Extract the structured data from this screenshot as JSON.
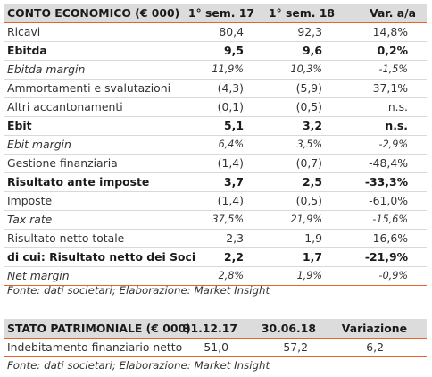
{
  "income": {
    "headers": {
      "label": "CONTO ECONOMICO (€ 000)",
      "col1": "1° sem. 17",
      "col2": "1° sem. 18",
      "col3": "Var. a/a"
    },
    "rows": [
      {
        "label": "Ricavi",
        "v1": "80,4",
        "v2": "92,3",
        "v3": "14,8%"
      },
      {
        "label": "Ebitda",
        "v1": "9,5",
        "v2": "9,6",
        "v3": "0,2%"
      },
      {
        "label": "Ebitda margin",
        "v1": "11,9%",
        "v2": "10,3%",
        "v3": "-1,5%"
      },
      {
        "label": "Ammortamenti e svalutazioni",
        "v1": "(4,3)",
        "v2": "(5,9)",
        "v3": "37,1%"
      },
      {
        "label": "Altri accantonamenti",
        "v1": "(0,1)",
        "v2": "(0,5)",
        "v3": "n.s."
      },
      {
        "label": "Ebit",
        "v1": "5,1",
        "v2": "3,2",
        "v3": "n.s."
      },
      {
        "label": "Ebit margin",
        "v1": "6,4%",
        "v2": "3,5%",
        "v3": "-2,9%"
      },
      {
        "label": "Gestione finanziaria",
        "v1": "(1,4)",
        "v2": "(0,7)",
        "v3": "-48,4%"
      },
      {
        "label": "Risultato ante imposte",
        "v1": "3,7",
        "v2": "2,5",
        "v3": "-33,3%"
      },
      {
        "label": "Imposte",
        "v1": "(1,4)",
        "v2": "(0,5)",
        "v3": "-61,0%"
      },
      {
        "label": "Tax rate",
        "v1": "37,5%",
        "v2": "21,9%",
        "v3": "-15,6%"
      },
      {
        "label": "Risultato netto totale",
        "v1": "2,3",
        "v2": "1,9",
        "v3": "-16,6%"
      },
      {
        "label": "di cui: Risultato netto dei Soci",
        "v1": "2,2",
        "v2": "1,7",
        "v3": "-21,9%"
      },
      {
        "label": "Net margin",
        "v1": "2,8%",
        "v2": "1,9%",
        "v3": "-0,9%"
      }
    ],
    "source": "Fonte: dati societari; Elaborazione: Market Insight"
  },
  "balance": {
    "headers": {
      "label": "STATO PATRIMONIALE (€ 000)",
      "col1": "31.12.17",
      "col2": "30.06.18",
      "col3": "Variazione"
    },
    "rows": [
      {
        "label": "Indebitamento finanziario netto",
        "v1": "51,0",
        "v2": "57,2",
        "v3": "6,2"
      }
    ],
    "source": "Fonte: dati societari; Elaborazione: Market Insight"
  },
  "colors": {
    "header_bg": "#dcdcdc",
    "separator_accent": "#e8622c"
  }
}
